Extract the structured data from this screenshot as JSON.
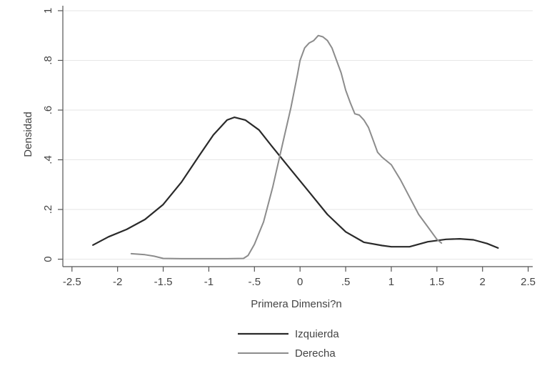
{
  "chart_data": {
    "type": "line",
    "title": "",
    "xlabel": "Primera Dimensi?n",
    "ylabel": "Densidad",
    "xlim": [
      -2.6,
      2.55
    ],
    "ylim": [
      -0.03,
      1.02
    ],
    "xticks": [
      {
        "value": -2.5,
        "label": "-2.5"
      },
      {
        "value": -2,
        "label": "-2"
      },
      {
        "value": -1.5,
        "label": "-1.5"
      },
      {
        "value": -1,
        "label": "-1"
      },
      {
        "value": -0.5,
        "label": "-.5"
      },
      {
        "value": 0,
        "label": "0"
      },
      {
        "value": 0.5,
        "label": ".5"
      },
      {
        "value": 1,
        "label": "1"
      },
      {
        "value": 1.5,
        "label": "1.5"
      },
      {
        "value": 2,
        "label": "2"
      },
      {
        "value": 2.5,
        "label": "2.5"
      }
    ],
    "yticks": [
      {
        "value": 0,
        "label": "0"
      },
      {
        "value": 0.2,
        "label": ".2"
      },
      {
        "value": 0.4,
        "label": ".4"
      },
      {
        "value": 0.6,
        "label": ".6"
      },
      {
        "value": 0.8,
        "label": ".8"
      },
      {
        "value": 1,
        "label": "1"
      }
    ],
    "grid": true,
    "legend_position": "bottom",
    "series": [
      {
        "name": "Izquierda",
        "color": "#2a2a2a",
        "x": [
          -2.27,
          -2.1,
          -1.9,
          -1.7,
          -1.5,
          -1.3,
          -1.1,
          -0.95,
          -0.8,
          -0.72,
          -0.6,
          -0.45,
          -0.3,
          -0.1,
          0.1,
          0.3,
          0.5,
          0.7,
          0.9,
          1.0,
          1.2,
          1.4,
          1.6,
          1.75,
          1.9,
          2.05,
          2.17
        ],
        "y": [
          0.057,
          0.09,
          0.12,
          0.16,
          0.22,
          0.31,
          0.42,
          0.5,
          0.56,
          0.571,
          0.56,
          0.52,
          0.45,
          0.36,
          0.27,
          0.18,
          0.11,
          0.068,
          0.055,
          0.05,
          0.05,
          0.07,
          0.08,
          0.082,
          0.078,
          0.063,
          0.045
        ]
      },
      {
        "name": "Derecha",
        "color": "#8c8c8c",
        "x": [
          -1.85,
          -1.7,
          -1.6,
          -1.5,
          -1.3,
          -1.0,
          -0.8,
          -0.62,
          -0.57,
          -0.5,
          -0.4,
          -0.3,
          -0.2,
          -0.1,
          -0.03,
          0.0,
          0.05,
          0.1,
          0.15,
          0.2,
          0.25,
          0.3,
          0.35,
          0.4,
          0.45,
          0.5,
          0.55,
          0.6,
          0.65,
          0.7,
          0.75,
          0.8,
          0.85,
          0.9,
          1.0,
          1.1,
          1.2,
          1.3,
          1.4,
          1.5,
          1.55
        ],
        "y": [
          0.022,
          0.018,
          0.012,
          0.003,
          0.002,
          0.002,
          0.002,
          0.003,
          0.015,
          0.06,
          0.15,
          0.29,
          0.45,
          0.61,
          0.74,
          0.8,
          0.85,
          0.87,
          0.88,
          0.9,
          0.895,
          0.88,
          0.85,
          0.8,
          0.75,
          0.68,
          0.63,
          0.585,
          0.58,
          0.56,
          0.53,
          0.48,
          0.43,
          0.41,
          0.38,
          0.32,
          0.25,
          0.18,
          0.13,
          0.08,
          0.065
        ]
      }
    ]
  }
}
